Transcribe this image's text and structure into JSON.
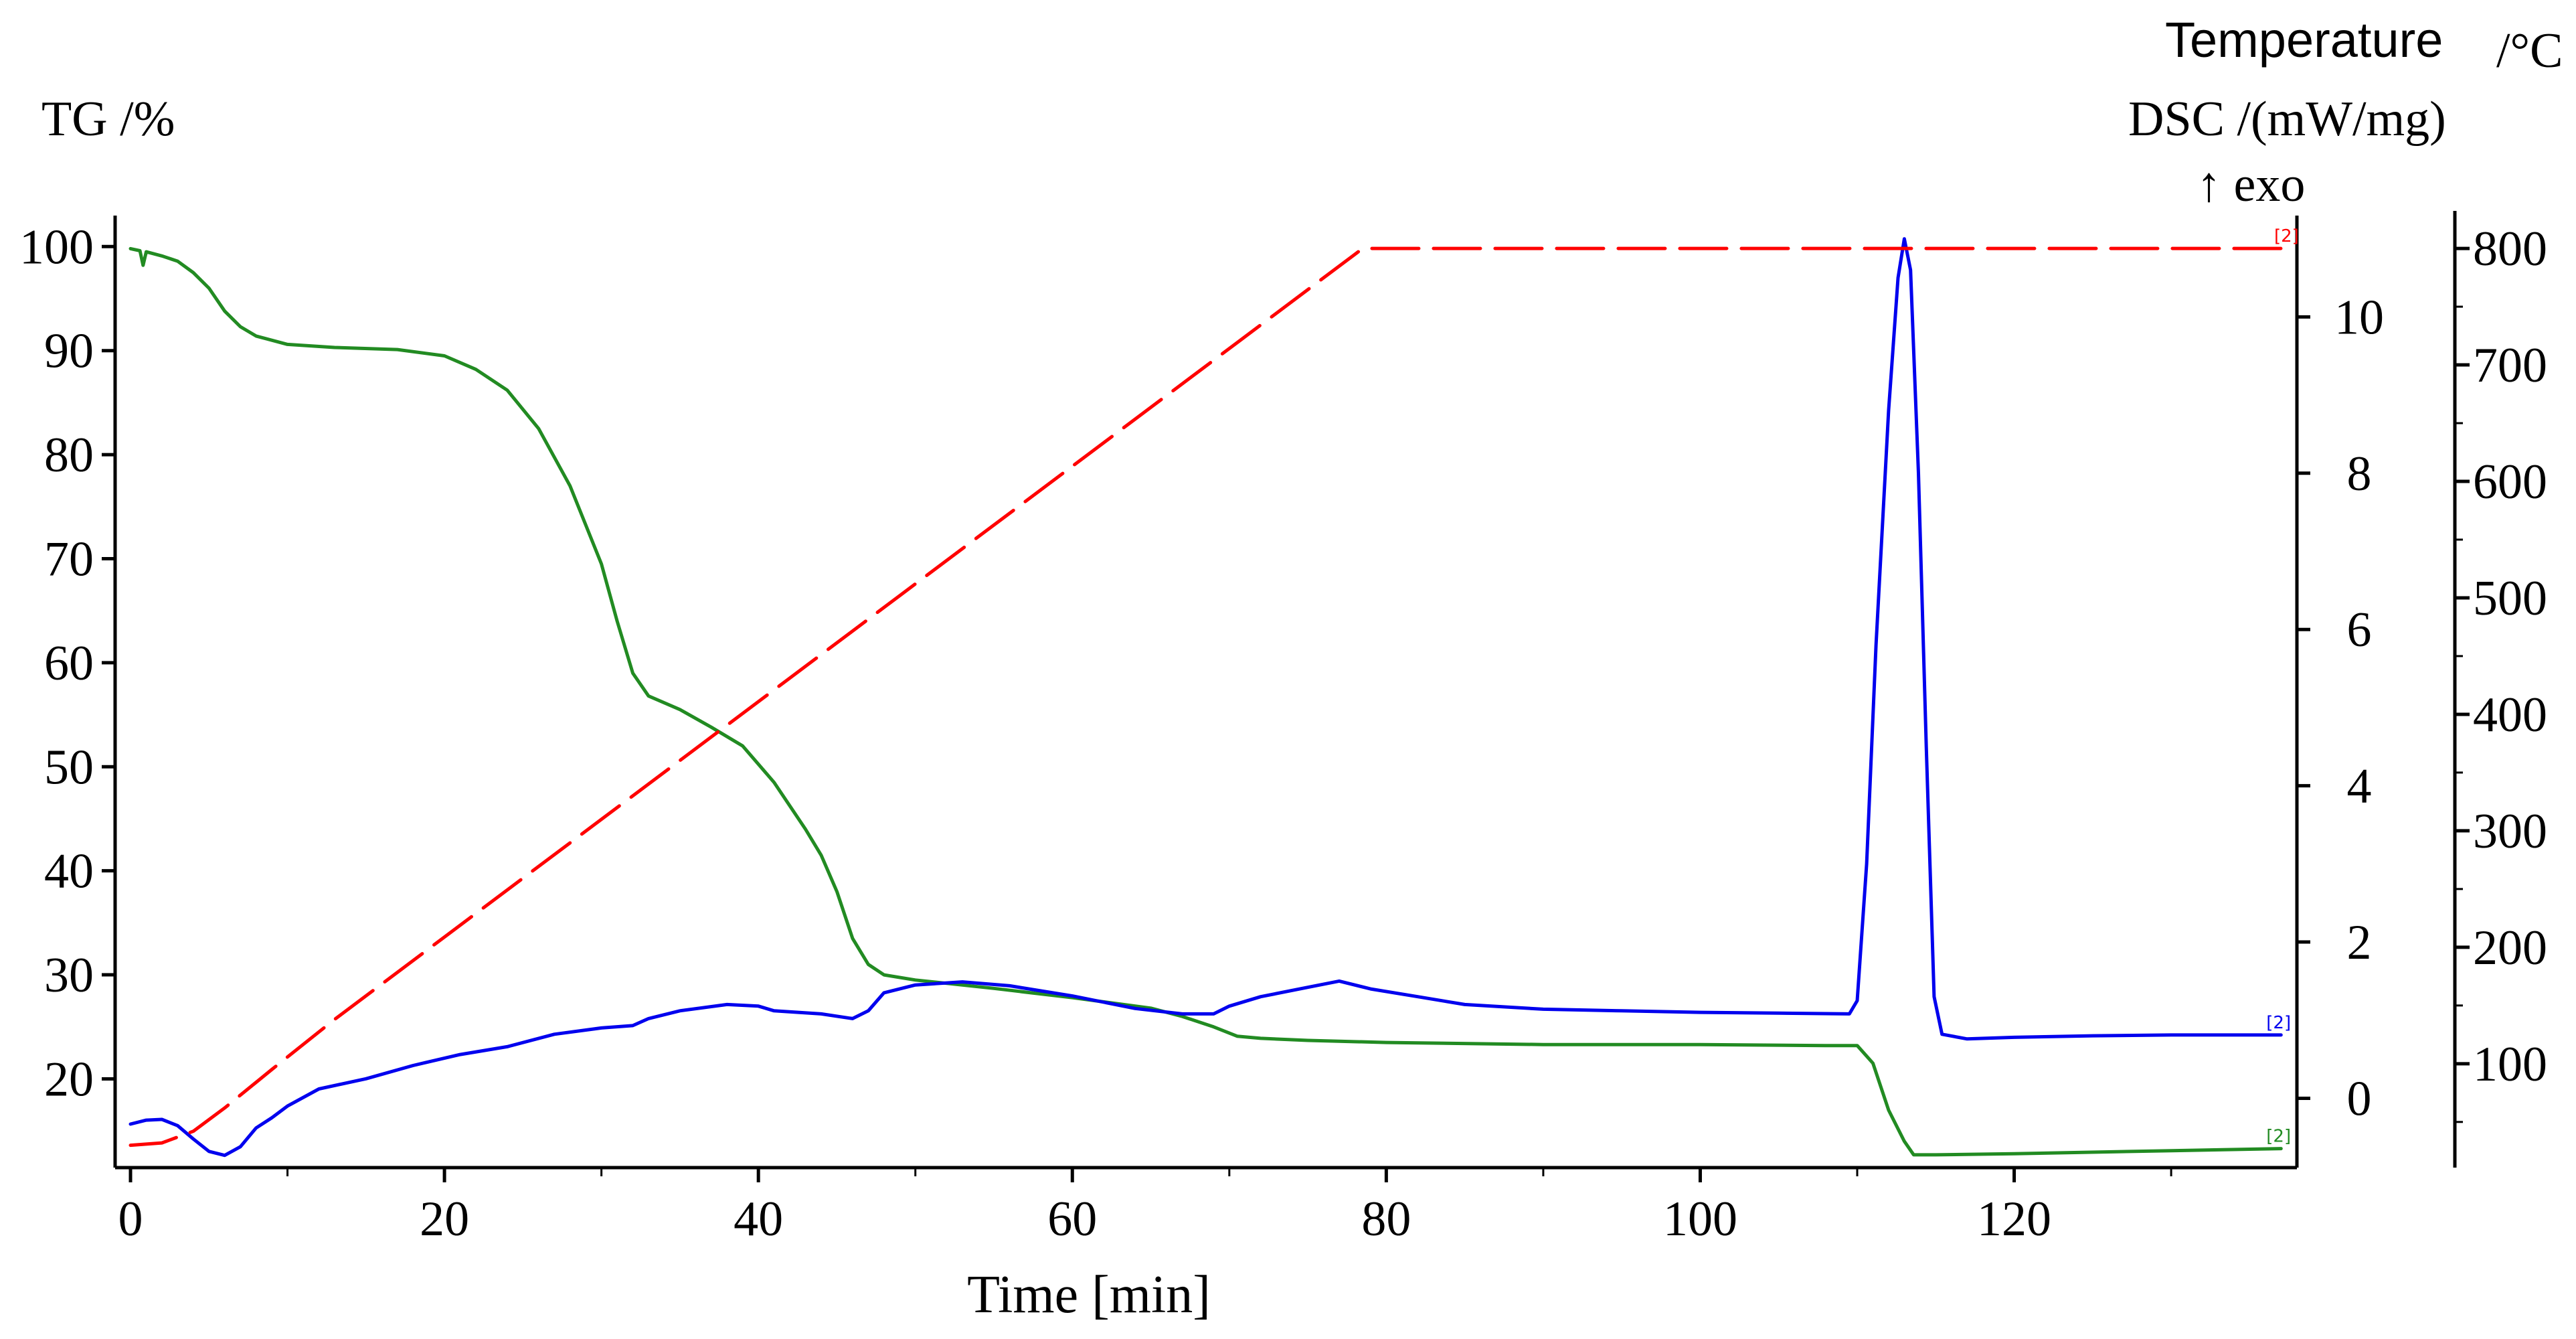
{
  "chart_data": {
    "type": "line",
    "title": "",
    "xlabel": "Time [min]",
    "xlim": [
      0,
      137.5
    ],
    "x_ticks": [
      0,
      20,
      40,
      60,
      80,
      100,
      120
    ],
    "axes": {
      "tg": {
        "label": "TG /%",
        "ylim": [
          12.5,
          101.5
        ],
        "ticks": [
          20,
          30,
          40,
          50,
          60,
          70,
          80,
          90,
          100
        ]
      },
      "dsc": {
        "label": "DSC /(mW/mg)",
        "exo_label": "↑ exo",
        "ylim": [
          -0.75,
          11.1
        ],
        "ticks": [
          0,
          2,
          4,
          6,
          8,
          10
        ]
      },
      "temp": {
        "label": "Temperature",
        "unit": "/°C",
        "ylim": [
          20,
          815
        ],
        "ticks": [
          100,
          200,
          300,
          400,
          500,
          600,
          700,
          800
        ]
      }
    },
    "series": [
      {
        "name": "TG",
        "axis": "tg",
        "color": "#228b22",
        "dash": "solid",
        "end_tag": "[2]",
        "points": [
          [
            0,
            99.8
          ],
          [
            0.6,
            99.6
          ],
          [
            0.8,
            98.2
          ],
          [
            1,
            99.5
          ],
          [
            2,
            99.1
          ],
          [
            3,
            98.6
          ],
          [
            4,
            97.5
          ],
          [
            5,
            96
          ],
          [
            6,
            93.8
          ],
          [
            7,
            92.3
          ],
          [
            8,
            91.4
          ],
          [
            10,
            90.6
          ],
          [
            13,
            90.3
          ],
          [
            17,
            90.1
          ],
          [
            20,
            89.5
          ],
          [
            22,
            88.2
          ],
          [
            24,
            86.2
          ],
          [
            26,
            82.5
          ],
          [
            28,
            77
          ],
          [
            30,
            69.5
          ],
          [
            31,
            64
          ],
          [
            32,
            59
          ],
          [
            33,
            56.8
          ],
          [
            35,
            55.5
          ],
          [
            37,
            53.8
          ],
          [
            39,
            52
          ],
          [
            41,
            48.5
          ],
          [
            43,
            44
          ],
          [
            44,
            41.5
          ],
          [
            45,
            38
          ],
          [
            46,
            33.5
          ],
          [
            47,
            31
          ],
          [
            48,
            30
          ],
          [
            50,
            29.5
          ],
          [
            55,
            28.7
          ],
          [
            60,
            27.8
          ],
          [
            65,
            26.8
          ],
          [
            67,
            26
          ],
          [
            69,
            25
          ],
          [
            70.5,
            24.1
          ],
          [
            72,
            23.9
          ],
          [
            75,
            23.7
          ],
          [
            80,
            23.5
          ],
          [
            90,
            23.3
          ],
          [
            100,
            23.3
          ],
          [
            108,
            23.2
          ],
          [
            110,
            23.2
          ],
          [
            111,
            21.5
          ],
          [
            112,
            17
          ],
          [
            113,
            14
          ],
          [
            113.6,
            12.7
          ],
          [
            115,
            12.7
          ],
          [
            120,
            12.8
          ],
          [
            130,
            13.1
          ],
          [
            137,
            13.3
          ]
        ]
      },
      {
        "name": "DSC",
        "axis": "dsc",
        "color": "#0000ee",
        "dash": "solid",
        "end_tag": "[2]",
        "points": [
          [
            0,
            -0.33
          ],
          [
            1,
            -0.28
          ],
          [
            2,
            -0.27
          ],
          [
            3,
            -0.35
          ],
          [
            4,
            -0.52
          ],
          [
            5,
            -0.68
          ],
          [
            6,
            -0.73
          ],
          [
            7,
            -0.62
          ],
          [
            8,
            -0.38
          ],
          [
            9,
            -0.25
          ],
          [
            10,
            -0.1
          ],
          [
            12,
            0.12
          ],
          [
            15,
            0.25
          ],
          [
            18,
            0.42
          ],
          [
            21,
            0.56
          ],
          [
            24,
            0.66
          ],
          [
            27,
            0.82
          ],
          [
            30,
            0.9
          ],
          [
            32,
            0.93
          ],
          [
            33,
            1.02
          ],
          [
            35,
            1.12
          ],
          [
            38,
            1.2
          ],
          [
            40,
            1.18
          ],
          [
            41,
            1.12
          ],
          [
            44,
            1.08
          ],
          [
            46,
            1.02
          ],
          [
            47,
            1.12
          ],
          [
            48,
            1.35
          ],
          [
            50,
            1.45
          ],
          [
            53,
            1.49
          ],
          [
            56,
            1.44
          ],
          [
            60,
            1.31
          ],
          [
            64,
            1.15
          ],
          [
            67,
            1.08
          ],
          [
            69,
            1.08
          ],
          [
            70,
            1.18
          ],
          [
            72,
            1.3
          ],
          [
            75,
            1.42
          ],
          [
            77,
            1.5
          ],
          [
            79,
            1.4
          ],
          [
            82,
            1.3
          ],
          [
            85,
            1.2
          ],
          [
            90,
            1.14
          ],
          [
            95,
            1.12
          ],
          [
            100,
            1.1
          ],
          [
            105,
            1.09
          ],
          [
            109.5,
            1.08
          ],
          [
            110,
            1.25
          ],
          [
            110.6,
            3
          ],
          [
            111.2,
            5.8
          ],
          [
            112,
            8.8
          ],
          [
            112.6,
            10.5
          ],
          [
            113,
            11
          ],
          [
            113.4,
            10.6
          ],
          [
            113.9,
            8
          ],
          [
            114.4,
            4.5
          ],
          [
            114.9,
            1.3
          ],
          [
            115.4,
            0.82
          ],
          [
            117,
            0.76
          ],
          [
            120,
            0.78
          ],
          [
            125,
            0.8
          ],
          [
            130,
            0.81
          ],
          [
            137,
            0.81
          ]
        ]
      },
      {
        "name": "Temperature",
        "axis": "temp",
        "color": "#ff0000",
        "dash": "dashed",
        "end_tag": "[2]",
        "points": [
          [
            0,
            30
          ],
          [
            2,
            32
          ],
          [
            4,
            42
          ],
          [
            6,
            62
          ],
          [
            9,
            95
          ],
          [
            13,
            138
          ],
          [
            78.5,
            800
          ],
          [
            137.5,
            800
          ]
        ]
      }
    ]
  }
}
